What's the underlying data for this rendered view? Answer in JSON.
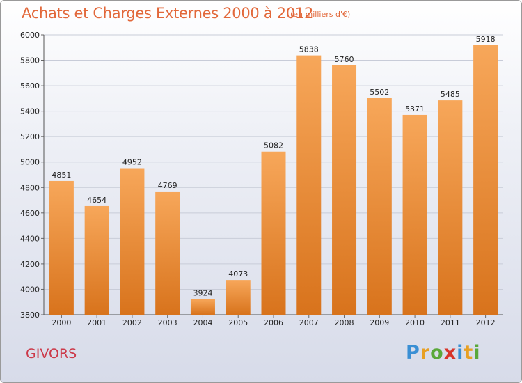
{
  "title": "Achats et Charges Externes 2000 à 2012",
  "subtitle": "(en milliers d'€)",
  "city": "GIVORS",
  "logo": {
    "text": "Proxiti",
    "colors": [
      "#3a8fd4",
      "#e8a024",
      "#5aa83a",
      "#d8352a",
      "#3a8fd4",
      "#e8a024",
      "#5aa83a"
    ]
  },
  "colors": {
    "bar_top": "#f7a75a",
    "bar_bottom": "#d8731c",
    "title": "#e2683a",
    "city": "#cc3a4a"
  },
  "chart_data": {
    "type": "bar",
    "title": "Achats et Charges Externes 2000 à 2012",
    "categories": [
      "2000",
      "2001",
      "2002",
      "2003",
      "2004",
      "2005",
      "2006",
      "2007",
      "2008",
      "2009",
      "2010",
      "2011",
      "2012"
    ],
    "values": [
      4851,
      4654,
      4952,
      4769,
      3924,
      4073,
      5082,
      5838,
      5760,
      5502,
      5371,
      5485,
      5918
    ],
    "ylim": [
      3800,
      6000
    ],
    "yticks": [
      3800,
      4000,
      4200,
      4400,
      4600,
      4800,
      5000,
      5200,
      5400,
      5600,
      5800,
      6000
    ],
    "grid": true
  }
}
